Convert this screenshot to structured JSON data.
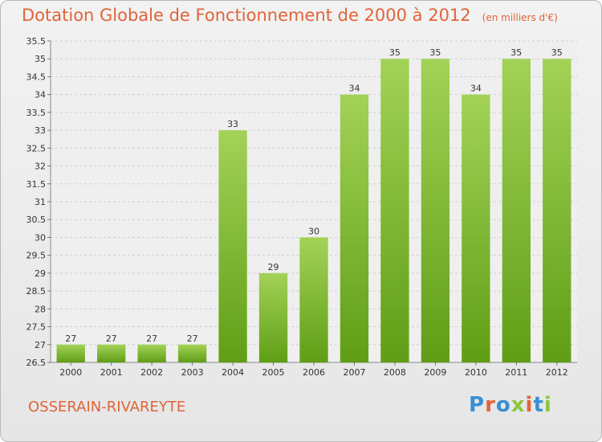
{
  "header": {
    "title": "Dotation Globale de Fonctionnement de 2000 à 2012",
    "unit_note": "(en milliers d'€)"
  },
  "footer": {
    "commune": "OSSERAIN-RIVAREYTE",
    "brand_letters": [
      "P",
      "r",
      "o",
      "x",
      "i",
      "t",
      "i"
    ]
  },
  "colors": {
    "title": "#e0643a",
    "bar_top": "#a3d257",
    "bar_bottom": "#5f9e16",
    "grid": "#cfcfcf",
    "brand": [
      "#3a8fd4",
      "#e0643a",
      "#3a8fd4",
      "#8cc63f",
      "#e0643a",
      "#3a8fd4",
      "#8cc63f"
    ]
  },
  "chart_data": {
    "type": "bar",
    "title": "Dotation Globale de Fonctionnement de 2000 à 2012",
    "subtitle": "(en milliers d'€)",
    "categories": [
      "2000",
      "2001",
      "2002",
      "2003",
      "2004",
      "2005",
      "2006",
      "2007",
      "2008",
      "2009",
      "2010",
      "2011",
      "2012"
    ],
    "values": [
      27,
      27,
      27,
      27,
      33,
      29,
      30,
      34,
      35,
      35,
      34,
      35,
      35
    ],
    "data_labels": [
      "27",
      "27",
      "27",
      "27",
      "33",
      "29",
      "30",
      "34",
      "35",
      "35",
      "34",
      "35",
      "35"
    ],
    "yticks": [
      "26.5",
      "27",
      "27.5",
      "28",
      "28.5",
      "29",
      "29.5",
      "30",
      "30.5",
      "31",
      "31.5",
      "32",
      "32.5",
      "33",
      "33.5",
      "34",
      "34.5",
      "35",
      "35.5"
    ],
    "ylim": [
      26.5,
      35.5
    ],
    "xlabel": "",
    "ylabel": "",
    "grid": true,
    "legend": "none"
  }
}
